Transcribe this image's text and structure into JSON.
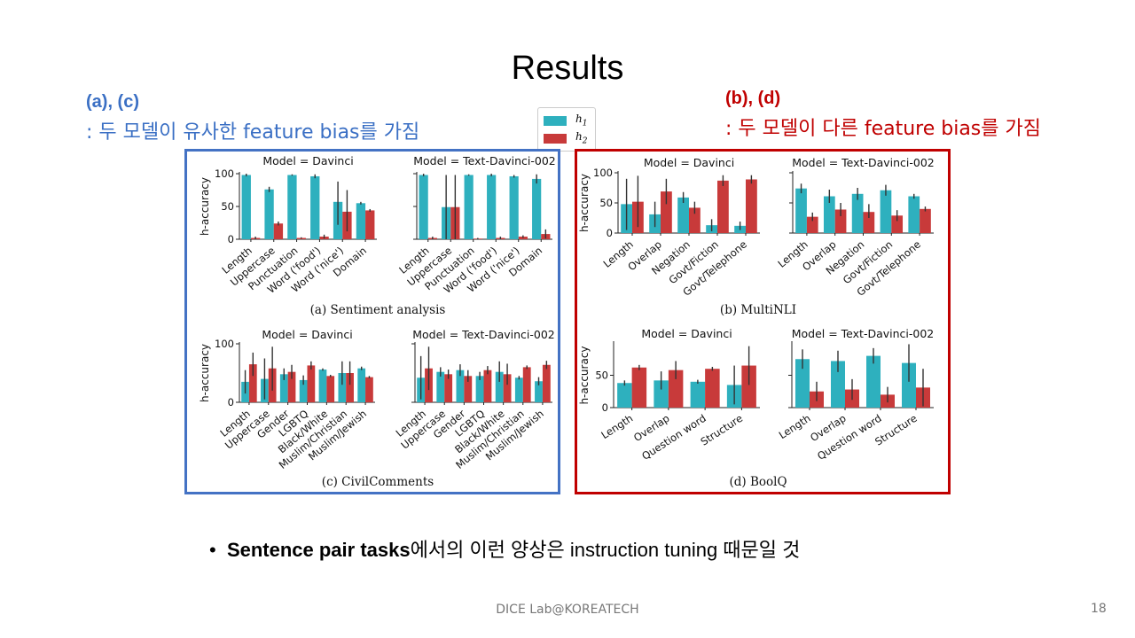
{
  "slide": {
    "title": "Results",
    "left_note": {
      "head": "(a), (c)",
      "text": ": 두 모델이 유사한 feature bias를 가짐"
    },
    "right_note": {
      "head": "(b), (d)",
      "text": ": 두 모델이 다른 feature bias를 가짐"
    },
    "bullet": {
      "bold": "Sentence pair tasks",
      "rest": "에서의 이런 양상은 instruction tuning 때문일 것"
    },
    "footer": "DICE Lab@KOREATECH",
    "page_number": "18"
  },
  "legend": {
    "h1_label": "h",
    "h1_sub": "1",
    "h2_label": "h",
    "h2_sub": "2"
  },
  "colors": {
    "h1": "#2eb0be",
    "h2": "#c83a3a",
    "left_frame": "#4472c4",
    "right_frame": "#c00000"
  },
  "chart_data": [
    {
      "id": "a",
      "type": "bar",
      "caption": "(a) Sentiment analysis",
      "ylabel": "h-accuracy",
      "ylim": [
        0,
        100
      ],
      "yticks": [
        0,
        50,
        100
      ],
      "categories": [
        "Length",
        "Uppercase",
        "Punctuation",
        "Word ('food')",
        "Word ('nice')",
        "Domain"
      ],
      "panels": [
        {
          "title": "Model = Davinci",
          "series": [
            {
              "values": [
                98,
                76,
                98,
                96,
                57,
                55
              ],
              "errors": [
                [
                  96,
                  100
                ],
                [
                  72,
                  80
                ],
                [
                  97,
                  99
                ],
                [
                  93,
                  99
                ],
                [
                  22,
                  88
                ],
                [
                  53,
                  57
                ]
              ]
            },
            {
              "values": [
                2,
                24,
                2,
                4,
                42,
                44
              ],
              "errors": [
                [
                  0,
                  4
                ],
                [
                  21,
                  27
                ],
                [
                  1,
                  3
                ],
                [
                  1,
                  7
                ],
                [
                  12,
                  75
                ],
                [
                  42,
                  46
                ]
              ]
            }
          ]
        },
        {
          "title": "Model = Text-Davinci-002",
          "series": [
            {
              "values": [
                98,
                49,
                98,
                98,
                96,
                92
              ],
              "errors": [
                [
                  96,
                  100
                ],
                [
                  0,
                  98
                ],
                [
                  97,
                  99
                ],
                [
                  96,
                  100
                ],
                [
                  94,
                  98
                ],
                [
                  85,
                  99
                ]
              ]
            },
            {
              "values": [
                2,
                49,
                1,
                2,
                4,
                8
              ],
              "errors": [
                [
                  0,
                  4
                ],
                [
                  0,
                  98
                ],
                [
                  0,
                  2
                ],
                [
                  0,
                  4
                ],
                [
                  2,
                  6
                ],
                [
                  1,
                  15
                ]
              ]
            }
          ]
        }
      ]
    },
    {
      "id": "b",
      "type": "bar",
      "caption": "(b) MultiNLI",
      "ylabel": "h-accuracy",
      "ylim": [
        0,
        100
      ],
      "yticks": [
        0,
        50,
        100
      ],
      "categories": [
        "Length",
        "Overlap",
        "Negation",
        "Govt/Fiction",
        "Govt/Telephone"
      ],
      "panels": [
        {
          "title": "Model = Davinci",
          "series": [
            {
              "values": [
                48,
                31,
                59,
                13,
                12
              ],
              "errors": [
                [
                  5,
                  90
                ],
                [
                  10,
                  52
                ],
                [
                  50,
                  68
                ],
                [
                  3,
                  23
                ],
                [
                  5,
                  19
                ]
              ]
            },
            {
              "values": [
                52,
                69,
                42,
                87,
                89
              ],
              "errors": [
                [
                  10,
                  95
                ],
                [
                  48,
                  90
                ],
                [
                  32,
                  52
                ],
                [
                  78,
                  96
                ],
                [
                  82,
                  96
                ]
              ]
            }
          ]
        },
        {
          "title": "Model = Text-Davinci-002",
          "series": [
            {
              "values": [
                74,
                61,
                65,
                71,
                61
              ],
              "errors": [
                [
                  66,
                  82
                ],
                [
                  50,
                  72
                ],
                [
                  55,
                  75
                ],
                [
                  62,
                  80
                ],
                [
                  57,
                  65
                ]
              ]
            },
            {
              "values": [
                27,
                39,
                35,
                29,
                40
              ],
              "errors": [
                [
                  20,
                  34
                ],
                [
                  28,
                  50
                ],
                [
                  25,
                  48
                ],
                [
                  20,
                  38
                ],
                [
                  36,
                  44
                ]
              ]
            }
          ]
        }
      ]
    },
    {
      "id": "c",
      "type": "bar",
      "caption": "(c) CivilComments",
      "ylabel": "h-accuracy",
      "ylim": [
        0,
        100
      ],
      "yticks": [
        0,
        100
      ],
      "categories": [
        "Length",
        "Uppercase",
        "Gender",
        "LGBTQ",
        "Black/White",
        "Muslim/Christian",
        "Muslim/Jewish"
      ],
      "panels": [
        {
          "title": "Model = Davinci",
          "series": [
            {
              "values": [
                35,
                40,
                48,
                38,
                56,
                50,
                58
              ],
              "errors": [
                [
                  15,
                  55
                ],
                [
                  5,
                  75
                ],
                [
                  38,
                  58
                ],
                [
                  30,
                  46
                ],
                [
                  54,
                  58
                ],
                [
                  30,
                  70
                ],
                [
                  55,
                  61
                ]
              ]
            },
            {
              "values": [
                65,
                58,
                52,
                63,
                45,
                50,
                43
              ],
              "errors": [
                [
                  45,
                  85
                ],
                [
                  20,
                  95
                ],
                [
                  40,
                  64
                ],
                [
                  56,
                  70
                ],
                [
                  43,
                  47
                ],
                [
                  30,
                  70
                ],
                [
                  41,
                  45
                ]
              ]
            }
          ]
        },
        {
          "title": "Model = Text-Davinci-002",
          "series": [
            {
              "values": [
                42,
                52,
                55,
                45,
                52,
                42,
                36
              ],
              "errors": [
                [
                  5,
                  79
                ],
                [
                  44,
                  60
                ],
                [
                  45,
                  65
                ],
                [
                  38,
                  52
                ],
                [
                  35,
                  70
                ],
                [
                  39,
                  45
                ],
                [
                  29,
                  43
                ]
              ]
            },
            {
              "values": [
                58,
                48,
                45,
                55,
                48,
                60,
                64
              ],
              "errors": [
                [
                  21,
                  95
                ],
                [
                  40,
                  56
                ],
                [
                  35,
                  55
                ],
                [
                  48,
                  62
                ],
                [
                  30,
                  66
                ],
                [
                  57,
                  63
                ],
                [
                  57,
                  71
                ]
              ]
            }
          ]
        }
      ]
    },
    {
      "id": "d",
      "type": "bar",
      "caption": "(d) BoolQ",
      "ylabel": "h-accuracy",
      "ylim": [
        0,
        100
      ],
      "yticks": [
        0,
        50
      ],
      "categories": [
        "Length",
        "Overlap",
        "Question word",
        "Structure"
      ],
      "panels": [
        {
          "title": "Model = Davinci",
          "series": [
            {
              "values": [
                38,
                42,
                40,
                35
              ],
              "errors": [
                [
                  34,
                  42
                ],
                [
                  28,
                  56
                ],
                [
                  37,
                  43
                ],
                [
                  5,
                  65
                ]
              ]
            },
            {
              "values": [
                62,
                58,
                60,
                65
              ],
              "errors": [
                [
                  58,
                  66
                ],
                [
                  44,
                  72
                ],
                [
                  57,
                  63
                ],
                [
                  35,
                  95
                ]
              ]
            }
          ]
        },
        {
          "title": "Model = Text-Davinci-002",
          "series": [
            {
              "values": [
                75,
                72,
                80,
                69
              ],
              "errors": [
                [
                  60,
                  90
                ],
                [
                  55,
                  88
                ],
                [
                  68,
                  92
                ],
                [
                  40,
                  98
                ]
              ]
            },
            {
              "values": [
                25,
                28,
                20,
                31
              ],
              "errors": [
                [
                  10,
                  40
                ],
                [
                  12,
                  44
                ],
                [
                  8,
                  32
                ],
                [
                  2,
                  60
                ]
              ]
            }
          ]
        }
      ]
    }
  ]
}
